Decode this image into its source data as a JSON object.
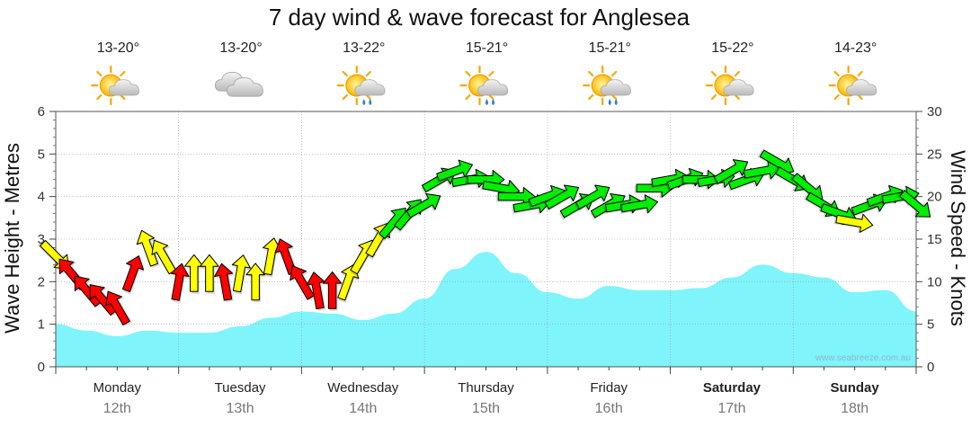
{
  "title": "7 day wind & wave forecast for Anglesea",
  "watermark": "www.seabreeze.com.au",
  "days": [
    {
      "name": "Monday",
      "date": "12th",
      "temp": "13-20°",
      "icon": "sun-cloud-icon",
      "weekend": false
    },
    {
      "name": "Tuesday",
      "date": "13th",
      "temp": "13-20°",
      "icon": "cloud-icon",
      "weekend": false
    },
    {
      "name": "Wednesday",
      "date": "14th",
      "temp": "13-22°",
      "icon": "sun-cloud-rain-icon",
      "weekend": false
    },
    {
      "name": "Thursday",
      "date": "15th",
      "temp": "15-21°",
      "icon": "sun-cloud-rain-icon",
      "weekend": false
    },
    {
      "name": "Friday",
      "date": "16th",
      "temp": "15-21°",
      "icon": "sun-cloud-rain-icon",
      "weekend": false
    },
    {
      "name": "Saturday",
      "date": "17th",
      "temp": "15-22°",
      "icon": "sun-cloud-icon",
      "weekend": true
    },
    {
      "name": "Sunday",
      "date": "18th",
      "temp": "14-23°",
      "icon": "sun-cloud-icon",
      "weekend": true
    }
  ],
  "colors": {
    "wave": "#7ff4fb",
    "wind_yellow": "#ffff00",
    "wind_red": "#ff0000",
    "wind_green": "#00ee00",
    "grid": "#999999"
  },
  "chart_data": {
    "type": "area",
    "title": "7 day wind & wave forecast for Anglesea",
    "ylabel_left": "Wave Height - Metres",
    "ylabel_right": "Wind Speed - Knots",
    "ylim_left": [
      0,
      6
    ],
    "ylim_right": [
      0,
      30
    ],
    "yticks_left": [
      "0",
      "1",
      "2",
      "3",
      "4",
      "5",
      "6"
    ],
    "yticks_right": [
      "0",
      "5",
      "10",
      "15",
      "20",
      "25",
      "30"
    ],
    "x_unit": "hours from Monday 00:00",
    "x_range": [
      0,
      168
    ],
    "wave_series": {
      "name": "Wave Height (m)",
      "x": [
        0,
        6,
        12,
        18,
        24,
        30,
        36,
        42,
        48,
        54,
        60,
        66,
        72,
        78,
        84,
        90,
        96,
        102,
        108,
        114,
        120,
        126,
        132,
        138,
        144,
        150,
        156,
        162,
        168
      ],
      "values": [
        1.0,
        0.85,
        0.72,
        0.85,
        0.8,
        0.8,
        0.95,
        1.15,
        1.3,
        1.25,
        1.1,
        1.25,
        1.6,
        2.3,
        2.7,
        2.2,
        1.75,
        1.6,
        1.9,
        1.8,
        1.8,
        1.85,
        2.1,
        2.4,
        2.2,
        2.1,
        1.75,
        1.8,
        1.3
      ]
    },
    "wind_series": {
      "name": "Wind Speed (knots)",
      "x": [
        0,
        3,
        6,
        9,
        12,
        15,
        18,
        21,
        24,
        27,
        30,
        33,
        36,
        39,
        42,
        45,
        48,
        51,
        54,
        57,
        60,
        63,
        66,
        69,
        72,
        75,
        78,
        81,
        84,
        87,
        90,
        93,
        96,
        99,
        102,
        105,
        108,
        111,
        114,
        117,
        120,
        123,
        126,
        129,
        132,
        135,
        138,
        141,
        144,
        147,
        150,
        153,
        156,
        159,
        162,
        165,
        168
      ],
      "knots": [
        13,
        11,
        9,
        8,
        7,
        11,
        14,
        13,
        10,
        11,
        11,
        10,
        11,
        10,
        13,
        13,
        10,
        9,
        9,
        10,
        13,
        15,
        17,
        18,
        19,
        22,
        23,
        22,
        22,
        21,
        20,
        19,
        20,
        20,
        19,
        20,
        19,
        19,
        19,
        21,
        22,
        22,
        22,
        22,
        23,
        22,
        23,
        24,
        22,
        21,
        19,
        18,
        17,
        19,
        20,
        20,
        19
      ],
      "colors": [
        "yellow",
        "red",
        "red",
        "red",
        "red",
        "red",
        "yellow",
        "yellow",
        "red",
        "yellow",
        "yellow",
        "red",
        "yellow",
        "yellow",
        "yellow",
        "red",
        "red",
        "red",
        "red",
        "yellow",
        "yellow",
        "yellow",
        "green",
        "green",
        "green",
        "green",
        "green",
        "green",
        "green",
        "green",
        "green",
        "green",
        "green",
        "green",
        "green",
        "green",
        "green",
        "green",
        "green",
        "green",
        "green",
        "green",
        "green",
        "green",
        "green",
        "green",
        "green",
        "green",
        "green",
        "green",
        "green",
        "green",
        "yellow",
        "green",
        "green",
        "green",
        "green"
      ],
      "direction_deg": [
        135,
        320,
        320,
        320,
        330,
        20,
        340,
        330,
        10,
        0,
        0,
        350,
        10,
        0,
        10,
        340,
        330,
        350,
        0,
        20,
        30,
        30,
        40,
        40,
        60,
        60,
        70,
        80,
        90,
        100,
        90,
        80,
        70,
        60,
        60,
        60,
        60,
        80,
        80,
        90,
        80,
        70,
        90,
        80,
        60,
        70,
        80,
        120,
        120,
        130,
        120,
        110,
        100,
        70,
        70,
        80,
        130
      ]
    }
  }
}
